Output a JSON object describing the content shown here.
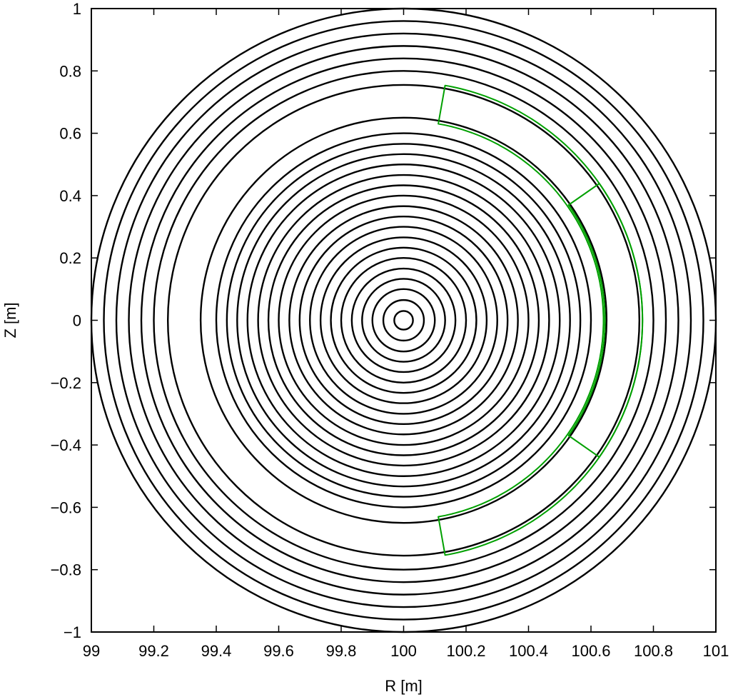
{
  "chart_data": {
    "type": "scatter",
    "title": "",
    "xlabel": "R [m]",
    "ylabel": "Z [m]",
    "xlim": [
      99,
      101
    ],
    "ylim": [
      -1,
      1
    ],
    "xticks": [
      99,
      99.2,
      99.4,
      99.6,
      99.8,
      100,
      100.2,
      100.4,
      100.6,
      100.8,
      101
    ],
    "xtick_labels": [
      "99",
      "99.2",
      "99.4",
      "99.6",
      "99.8",
      "100",
      "100.2",
      "100.4",
      "100.6",
      "100.8",
      "101"
    ],
    "yticks": [
      -1,
      -0.8,
      -0.6,
      -0.4,
      -0.2,
      0,
      0.2,
      0.4,
      0.6,
      0.8,
      1
    ],
    "ytick_labels": [
      "−1",
      "−0.8",
      "−0.6",
      "−0.4",
      "−0.2",
      "0",
      "0.2",
      "0.4",
      "0.6",
      "0.8",
      "1"
    ],
    "grid": false,
    "legend": "none",
    "center": [
      100,
      0
    ],
    "series": [
      {
        "color": "#000000",
        "shape": "closed flux surfaces (circles)",
        "radii": [
          0.03,
          0.065,
          0.1,
          0.133,
          0.166,
          0.2,
          0.233,
          0.266,
          0.3,
          0.333,
          0.366,
          0.4,
          0.433,
          0.466,
          0.5,
          0.533,
          0.566,
          0.6,
          0.65,
          0.755,
          0.8,
          0.84,
          0.88,
          0.92,
          0.96,
          1.0
        ]
      },
      {
        "color": "#00a000",
        "shape": "magnetic islands (crescents)",
        "islands": [
          {
            "r_inner": 0.64,
            "r_outer": 0.765,
            "theta_half_deg": 80
          },
          {
            "r_inner": 0.645,
            "r_outer": 0.765,
            "theta_half_deg": 35
          }
        ]
      }
    ]
  }
}
